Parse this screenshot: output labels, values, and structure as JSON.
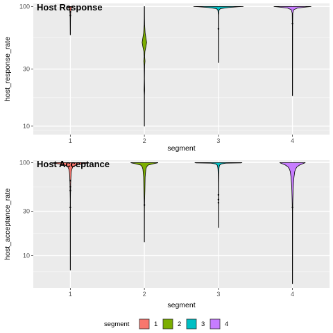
{
  "chart_data": [
    {
      "type": "violin",
      "title": "Host Response",
      "xlabel": "segment",
      "ylabel": "host_response_rate",
      "categories": [
        "1",
        "2",
        "3",
        "4"
      ],
      "y_scale": "log",
      "ylim": [
        8.5,
        106
      ],
      "y_ticks": [
        {
          "value": 10,
          "label": "10"
        },
        {
          "value": 30,
          "label": "30"
        },
        {
          "value": 100,
          "label": "100"
        }
      ],
      "grid": true,
      "series": [
        {
          "category": "1",
          "color": "#F8766D",
          "min": 58,
          "max": 100,
          "outliers": [
            84,
            90
          ],
          "profile": [
            [
              100,
              0.0
            ],
            [
              99.5,
              0.1
            ],
            [
              98,
              0.05
            ],
            [
              95,
              0.03
            ],
            [
              90,
              0.015
            ],
            [
              80,
              0.008
            ],
            [
              58,
              0.003
            ]
          ]
        },
        {
          "category": "2",
          "color": "#7CAE00",
          "min": 10,
          "max": 100,
          "outliers": [],
          "profile": [
            [
              100,
              0.004
            ],
            [
              80,
              0.006
            ],
            [
              70,
              0.01
            ],
            [
              60,
              0.03
            ],
            [
              55,
              0.06
            ],
            [
              50,
              0.09
            ],
            [
              46,
              0.06
            ],
            [
              42,
              0.02
            ],
            [
              38,
              0.01
            ],
            [
              35,
              0.025
            ],
            [
              32,
              0.01
            ],
            [
              25,
              0.004
            ],
            [
              20,
              0.012
            ],
            [
              18,
              0.004
            ],
            [
              10,
              0.002
            ]
          ]
        },
        {
          "category": "3",
          "color": "#00BFC4",
          "min": 34,
          "max": 100,
          "outliers": [
            65
          ],
          "profile": [
            [
              100,
              1.0
            ],
            [
              99.5,
              0.8
            ],
            [
              98,
              0.4
            ],
            [
              96,
              0.08
            ],
            [
              93,
              0.02
            ],
            [
              85,
              0.006
            ],
            [
              34,
              0.003
            ]
          ]
        },
        {
          "category": "4",
          "color": "#C77CFF",
          "min": 18,
          "max": 100,
          "outliers": [
            72
          ],
          "profile": [
            [
              100,
              0.75
            ],
            [
              99,
              0.55
            ],
            [
              97,
              0.2
            ],
            [
              94,
              0.05
            ],
            [
              88,
              0.012
            ],
            [
              70,
              0.006
            ],
            [
              18,
              0.003
            ]
          ]
        }
      ]
    },
    {
      "type": "violin",
      "title": "Host Acceptance",
      "xlabel": "segment",
      "ylabel": "host_acceptance_rate",
      "categories": [
        "1",
        "2",
        "3",
        "4"
      ],
      "y_scale": "log",
      "ylim": [
        4.5,
        106
      ],
      "y_ticks": [
        {
          "value": 10,
          "label": "10"
        },
        {
          "value": 30,
          "label": "30"
        },
        {
          "value": 100,
          "label": "100"
        }
      ],
      "grid": true,
      "series": [
        {
          "category": "1",
          "color": "#F8766D",
          "min": 7,
          "max": 100,
          "outliers": [
            64,
            55,
            50,
            33
          ],
          "profile": [
            [
              100,
              0.65
            ],
            [
              99,
              0.75
            ],
            [
              97,
              0.45
            ],
            [
              94,
              0.22
            ],
            [
              90,
              0.1
            ],
            [
              85,
              0.06
            ],
            [
              80,
              0.04
            ],
            [
              75,
              0.03
            ],
            [
              70,
              0.025
            ],
            [
              60,
              0.015
            ],
            [
              50,
              0.01
            ],
            [
              40,
              0.004
            ],
            [
              7,
              0.002
            ]
          ]
        },
        {
          "category": "2",
          "color": "#7CAE00",
          "min": 14,
          "max": 100,
          "outliers": [
            35
          ],
          "profile": [
            [
              100,
              0.55
            ],
            [
              99,
              0.5
            ],
            [
              97,
              0.35
            ],
            [
              94,
              0.15
            ],
            [
              90,
              0.09
            ],
            [
              85,
              0.06
            ],
            [
              80,
              0.05
            ],
            [
              75,
              0.04
            ],
            [
              70,
              0.03
            ],
            [
              60,
              0.025
            ],
            [
              50,
              0.02
            ],
            [
              45,
              0.015
            ],
            [
              40,
              0.01
            ],
            [
              32,
              0.004
            ],
            [
              14,
              0.002
            ]
          ]
        },
        {
          "category": "3",
          "color": "#00BFC4",
          "min": 20,
          "max": 100,
          "outliers": [
            45,
            40,
            37
          ],
          "profile": [
            [
              100,
              0.95
            ],
            [
              99.3,
              0.9
            ],
            [
              98.5,
              0.3
            ],
            [
              97,
              0.12
            ],
            [
              94,
              0.05
            ],
            [
              90,
              0.03
            ],
            [
              85,
              0.018
            ],
            [
              75,
              0.01
            ],
            [
              60,
              0.006
            ],
            [
              45,
              0.004
            ],
            [
              20,
              0.002
            ]
          ]
        },
        {
          "category": "4",
          "color": "#C77CFF",
          "min": 5,
          "max": 100,
          "outliers": [
            33
          ],
          "profile": [
            [
              100,
              0.5
            ],
            [
              99,
              0.48
            ],
            [
              97,
              0.4
            ],
            [
              94,
              0.28
            ],
            [
              90,
              0.18
            ],
            [
              85,
              0.12
            ],
            [
              80,
              0.09
            ],
            [
              70,
              0.06
            ],
            [
              60,
              0.04
            ],
            [
              50,
              0.025
            ],
            [
              40,
              0.015
            ],
            [
              34,
              0.01
            ],
            [
              30,
              0.006
            ],
            [
              5,
              0.002
            ]
          ]
        }
      ]
    }
  ],
  "legend": {
    "title": "segment",
    "position": "bottom",
    "items": [
      {
        "label": "1",
        "color": "#F8766D"
      },
      {
        "label": "2",
        "color": "#7CAE00"
      },
      {
        "label": "3",
        "color": "#00BFC4"
      },
      {
        "label": "4",
        "color": "#C77CFF"
      }
    ]
  }
}
